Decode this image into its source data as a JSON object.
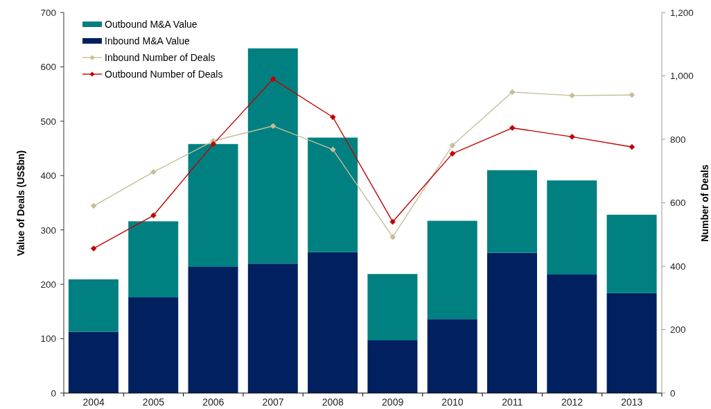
{
  "chart_data": {
    "type": "bar",
    "stacked": true,
    "ylabel": "Value of Deals (US$bn)",
    "y2label": "Number of Deals",
    "categories": [
      "2004",
      "2005",
      "2006",
      "2007",
      "2008",
      "2009",
      "2010",
      "2011",
      "2012",
      "2013"
    ],
    "series": [
      {
        "name": "Inbound M&A Value",
        "color": "#002060",
        "values": [
          113,
          176,
          232,
          238,
          259,
          97,
          136,
          258,
          218,
          184
        ]
      },
      {
        "name": "Outbound M&A Value",
        "color": "#008080",
        "values": [
          96,
          140,
          226,
          396,
          211,
          122,
          181,
          152,
          173,
          144
        ]
      },
      {
        "name": "Inbound Number of Deals",
        "type": "line",
        "axis": "y2",
        "color": "#c4bd97",
        "values": [
          590,
          697,
          795,
          842,
          768,
          492,
          781,
          949,
          938,
          940
        ]
      },
      {
        "name": "Outbound Number of Deals",
        "type": "line",
        "axis": "y2",
        "color": "#c00000",
        "values": [
          456,
          560,
          785,
          990,
          870,
          540,
          755,
          836,
          808,
          776
        ]
      }
    ],
    "ylim": [
      0,
      700
    ],
    "yticks": [
      0,
      100,
      200,
      300,
      400,
      500,
      600,
      700
    ],
    "y2lim": [
      0,
      1200
    ],
    "y2ticks": [
      0,
      200,
      400,
      600,
      800,
      {
        "value": 1000,
        "label": "1,000"
      },
      {
        "value": 1200,
        "label": "1,200"
      }
    ],
    "marker": "diamond",
    "legend": "top left"
  }
}
